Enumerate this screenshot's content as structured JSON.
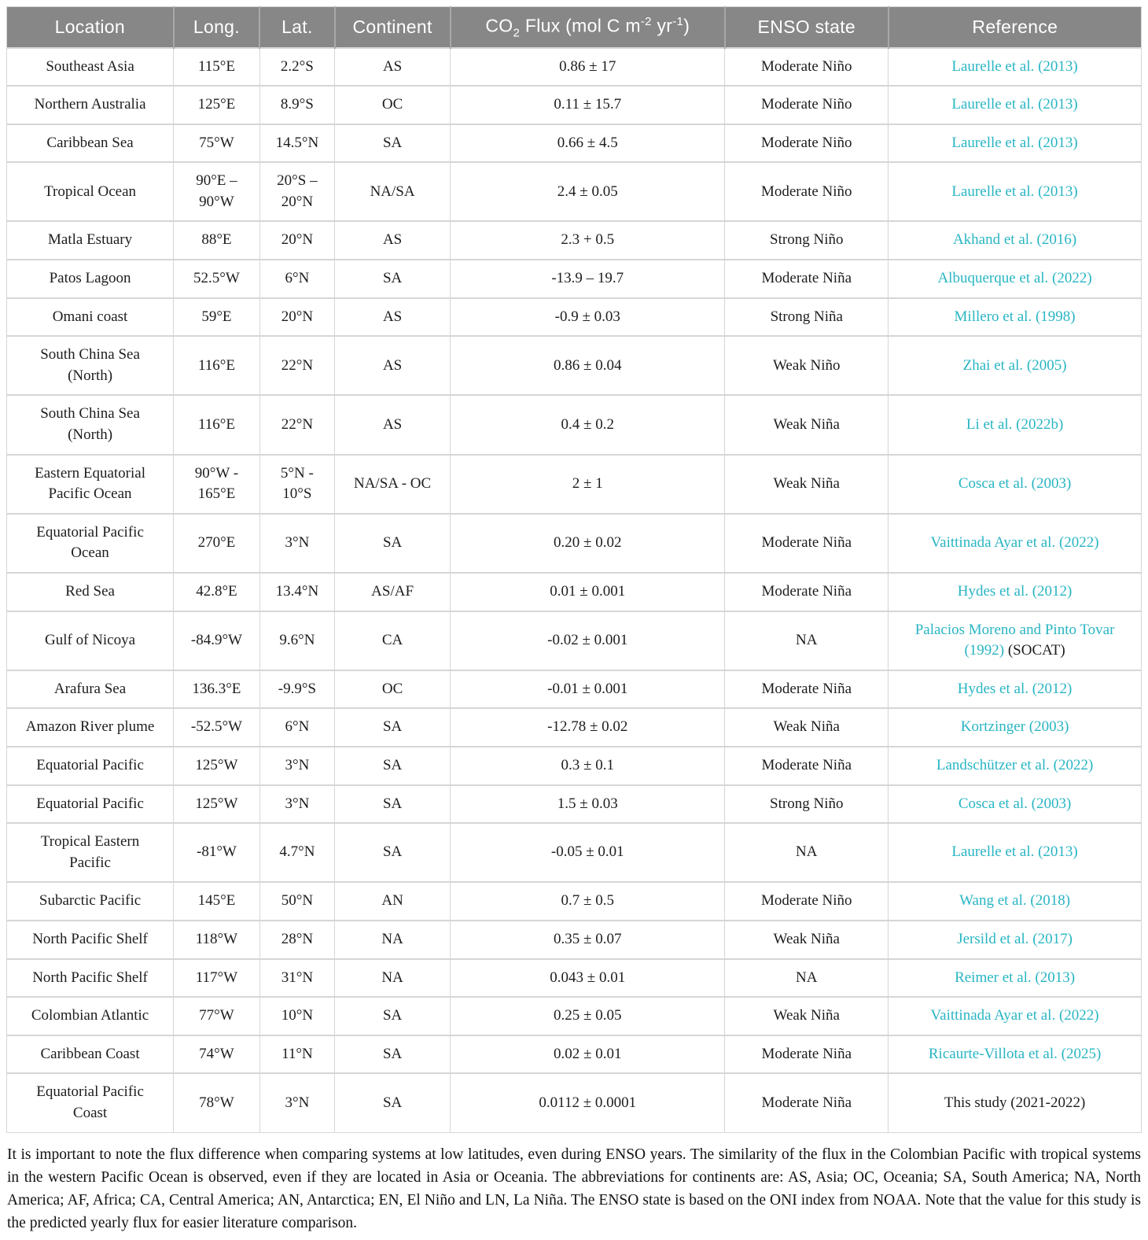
{
  "colors": {
    "header_bg": "#878787",
    "header_text": "#ffffff",
    "link": "#28b5c3",
    "body_text": "#1d1d1d",
    "border": "#d6d6d6"
  },
  "header": {
    "location": "Location",
    "long": "Long.",
    "lat": "Lat.",
    "continent": "Continent",
    "co2": {
      "b1": "CO",
      "sub": "2",
      "b2": " Flux (mol C m",
      "sup1": "-2",
      "b3": " yr",
      "sup2": "-1",
      "b4": ")"
    },
    "enso": "ENSO state",
    "reference": "Reference"
  },
  "table": {
    "rows": [
      {
        "location": "Southeast Asia",
        "long": "115°E",
        "lat": "2.2°S",
        "continent": "AS",
        "flux": "0.86 ± 17",
        "enso": "Moderate Niño",
        "ref": "Laurelle et al. (2013)",
        "ref_link": true,
        "ref_suffix": ""
      },
      {
        "location": "Northern Australia",
        "long": "125°E",
        "lat": "8.9°S",
        "continent": "OC",
        "flux": "0.11 ± 15.7",
        "enso": "Moderate Niño",
        "ref": "Laurelle et al. (2013)",
        "ref_link": true,
        "ref_suffix": ""
      },
      {
        "location": "Caribbean Sea",
        "long": "75°W",
        "lat": "14.5°N",
        "continent": "SA",
        "flux": "0.66 ± 4.5",
        "enso": "Moderate Niño",
        "ref": "Laurelle et al. (2013)",
        "ref_link": true,
        "ref_suffix": ""
      },
      {
        "location": "Tropical Ocean",
        "long": "90°E –\n90°W",
        "lat": "20°S –\n20°N",
        "continent": "NA/SA",
        "flux": "2.4 ± 0.05",
        "enso": "Moderate Niño",
        "ref": "Laurelle et al. (2013)",
        "ref_link": true,
        "ref_suffix": ""
      },
      {
        "location": "Matla Estuary",
        "long": "88°E",
        "lat": "20°N",
        "continent": "AS",
        "flux": "2.3 + 0.5",
        "enso": "Strong Niño",
        "ref": "Akhand et al. (2016)",
        "ref_link": true,
        "ref_suffix": ""
      },
      {
        "location": "Patos Lagoon",
        "long": "52.5°W",
        "lat": "6°N",
        "continent": "SA",
        "flux": "-13.9 – 19.7",
        "enso": "Moderate Niña",
        "ref": "Albuquerque et al. (2022)",
        "ref_link": true,
        "ref_suffix": ""
      },
      {
        "location": "Omani coast",
        "long": "59°E",
        "lat": "20°N",
        "continent": "AS",
        "flux": "-0.9 ± 0.03",
        "enso": "Strong Niña",
        "ref": "Millero et al. (1998)",
        "ref_link": true,
        "ref_suffix": ""
      },
      {
        "location": "South China Sea\n(North)",
        "long": "116°E",
        "lat": "22°N",
        "continent": "AS",
        "flux": "0.86 ± 0.04",
        "enso": "Weak Niño",
        "ref": "Zhai et al. (2005)",
        "ref_link": true,
        "ref_suffix": ""
      },
      {
        "location": "South China Sea\n(North)",
        "long": "116°E",
        "lat": "22°N",
        "continent": "AS",
        "flux": "0.4 ± 0.2",
        "enso": "Weak Niña",
        "ref": "Li et al. (2022b)",
        "ref_link": true,
        "ref_suffix": ""
      },
      {
        "location": "Eastern Equatorial\nPacific Ocean",
        "long": "90°W -\n165°E",
        "lat": "5°N -\n10°S",
        "continent": "NA/SA - OC",
        "flux": "2 ± 1",
        "enso": "Weak Niña",
        "ref": "Cosca et al. (2003)",
        "ref_link": true,
        "ref_suffix": ""
      },
      {
        "location": "Equatorial Pacific\nOcean",
        "long": "270°E",
        "lat": "3°N",
        "continent": "SA",
        "flux": "0.20 ± 0.02",
        "enso": "Moderate Niña",
        "ref": "Vaittinada Ayar et al. (2022)",
        "ref_link": true,
        "ref_suffix": ""
      },
      {
        "location": "Red Sea",
        "long": "42.8°E",
        "lat": "13.4°N",
        "continent": "AS/AF",
        "flux": "0.01 ± 0.001",
        "enso": "Moderate Niña",
        "ref": "Hydes et al. (2012)",
        "ref_link": true,
        "ref_suffix": ""
      },
      {
        "location": "Gulf of Nicoya",
        "long": "-84.9°W",
        "lat": "9.6°N",
        "continent": "CA",
        "flux": "-0.02 ± 0.001",
        "enso": "NA",
        "ref": "Palacios Moreno and Pinto Tovar (1992)",
        "ref_link": true,
        "ref_suffix": "(SOCAT)"
      },
      {
        "location": "Arafura Sea",
        "long": "136.3°E",
        "lat": "-9.9°S",
        "continent": "OC",
        "flux": "-0.01 ± 0.001",
        "enso": "Moderate Niña",
        "ref": "Hydes et al. (2012)",
        "ref_link": true,
        "ref_suffix": ""
      },
      {
        "location": "Amazon River plume",
        "long": "-52.5°W",
        "lat": "6°N",
        "continent": "SA",
        "flux": "-12.78 ± 0.02",
        "enso": "Weak Niña",
        "ref": "Kortzinger (2003)",
        "ref_link": true,
        "ref_suffix": ""
      },
      {
        "location": "Equatorial Pacific",
        "long": "125°W",
        "lat": "3°N",
        "continent": "SA",
        "flux": "0.3 ± 0.1",
        "enso": "Moderate Niña",
        "ref": "Landschützer et al. (2022)",
        "ref_link": true,
        "ref_suffix": ""
      },
      {
        "location": "Equatorial Pacific",
        "long": "125°W",
        "lat": "3°N",
        "continent": "SA",
        "flux": "1.5 ± 0.03",
        "enso": "Strong Niño",
        "ref": "Cosca et al. (2003)",
        "ref_link": true,
        "ref_suffix": ""
      },
      {
        "location": "Tropical Eastern\nPacific",
        "long": "-81°W",
        "lat": "4.7°N",
        "continent": "SA",
        "flux": "-0.05 ± 0.01",
        "enso": "NA",
        "ref": "Laurelle et al. (2013)",
        "ref_link": true,
        "ref_suffix": ""
      },
      {
        "location": "Subarctic Pacific",
        "long": "145°E",
        "lat": "50°N",
        "continent": "AN",
        "flux": "0.7 ± 0.5",
        "enso": "Moderate Niño",
        "ref": "Wang et al. (2018)",
        "ref_link": true,
        "ref_suffix": ""
      },
      {
        "location": "North Pacific Shelf",
        "long": "118°W",
        "lat": "28°N",
        "continent": "NA",
        "flux": "0.35 ± 0.07",
        "enso": "Weak Niña",
        "ref": "Jersild et al. (2017)",
        "ref_link": true,
        "ref_suffix": ""
      },
      {
        "location": "North Pacific Shelf",
        "long": "117°W",
        "lat": "31°N",
        "continent": "NA",
        "flux": "0.043 ± 0.01",
        "enso": "NA",
        "ref": "Reimer et al. (2013)",
        "ref_link": true,
        "ref_suffix": ""
      },
      {
        "location": "Colombian Atlantic",
        "long": "77°W",
        "lat": "10°N",
        "continent": "SA",
        "flux": "0.25 ± 0.05",
        "enso": "Weak Niña",
        "ref": "Vaittinada Ayar et al. (2022)",
        "ref_link": true,
        "ref_suffix": ""
      },
      {
        "location": "Caribbean Coast",
        "long": "74°W",
        "lat": "11°N",
        "continent": "SA",
        "flux": "0.02 ± 0.01",
        "enso": "Moderate Niña",
        "ref": "Ricaurte-Villota et al. (2025)",
        "ref_link": true,
        "ref_suffix": ""
      },
      {
        "location": "Equatorial Pacific\nCoast",
        "long": "78°W",
        "lat": "3°N",
        "continent": "SA",
        "flux": "0.0112 ± 0.0001",
        "enso": "Moderate Niña",
        "ref": "This study (2021-2022)",
        "ref_link": false,
        "ref_suffix": ""
      }
    ]
  },
  "footnote": "It is important to note the flux difference when comparing systems at low latitudes, even during ENSO years. The similarity of the flux in the Colombian Pacific with tropical systems in the western Pacific Ocean is observed, even if they are located in Asia or Oceania. The abbreviations for continents are: AS, Asia; OC, Oceania; SA, South America; NA, North America; AF, Africa; CA, Central America; AN, Antarctica; EN, El Niño and LN, La Niña. The ENSO state is based on the ONI index from NOAA. Note that the value for this study is the predicted yearly flux for easier literature comparison."
}
